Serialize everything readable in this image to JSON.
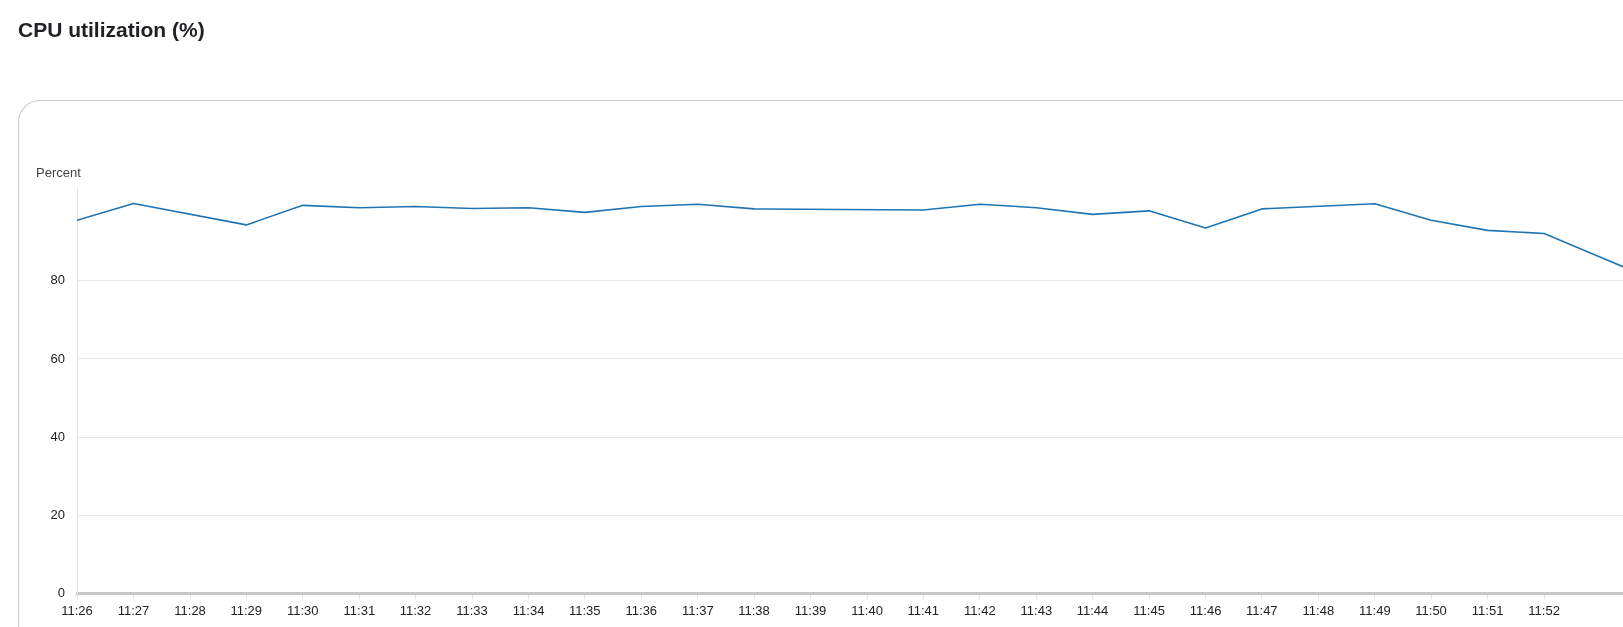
{
  "chart_data": {
    "type": "line",
    "title": "CPU utilization (%)",
    "ylabel": "Percent",
    "x": [
      11.4333,
      11.45,
      11.4833,
      11.5,
      11.5167,
      11.5333,
      11.55,
      11.5667,
      11.5833,
      11.6,
      11.6167,
      11.6333,
      11.6833,
      11.7,
      11.7167,
      11.7333,
      11.75,
      11.7667,
      11.7833,
      11.8167,
      11.8333,
      11.85,
      11.8667,
      11.89
    ],
    "series": [
      {
        "color": "#1f74b4",
        "values": [
          95.5,
          99.8,
          94.3,
          99.3,
          98.7,
          99.0,
          98.5,
          98.7,
          97.5,
          99.0,
          99.6,
          98.4,
          98.1,
          99.6,
          98.7,
          97.0,
          97.9,
          93.5,
          98.4,
          99.7,
          95.5,
          92.9,
          92.1,
          83.6
        ]
      }
    ],
    "xlim": [
      11.4333,
      11.89
    ],
    "ylim": [
      0,
      104
    ],
    "xticks": [
      {
        "value": 11.4333,
        "label": "11:26"
      },
      {
        "value": 11.45,
        "label": "11:27"
      },
      {
        "value": 11.4667,
        "label": "11:28"
      },
      {
        "value": 11.4833,
        "label": "11:29"
      },
      {
        "value": 11.5,
        "label": "11:30"
      },
      {
        "value": 11.5167,
        "label": "11:31"
      },
      {
        "value": 11.5333,
        "label": "11:32"
      },
      {
        "value": 11.55,
        "label": "11:33"
      },
      {
        "value": 11.5667,
        "label": "11:34"
      },
      {
        "value": 11.5833,
        "label": "11:35"
      },
      {
        "value": 11.6,
        "label": "11:36"
      },
      {
        "value": 11.6167,
        "label": "11:37"
      },
      {
        "value": 11.6333,
        "label": "11:38"
      },
      {
        "value": 11.65,
        "label": "11:39"
      },
      {
        "value": 11.6667,
        "label": "11:40"
      },
      {
        "value": 11.6833,
        "label": "11:41"
      },
      {
        "value": 11.7,
        "label": "11:42"
      },
      {
        "value": 11.7167,
        "label": "11:43"
      },
      {
        "value": 11.7333,
        "label": "11:44"
      },
      {
        "value": 11.75,
        "label": "11:45"
      },
      {
        "value": 11.7667,
        "label": "11:46"
      },
      {
        "value": 11.7833,
        "label": "11:47"
      },
      {
        "value": 11.8,
        "label": "11:48"
      },
      {
        "value": 11.8167,
        "label": "11:49"
      },
      {
        "value": 11.8333,
        "label": "11:50"
      },
      {
        "value": 11.85,
        "label": "11:51"
      },
      {
        "value": 11.8667,
        "label": "11:52"
      }
    ],
    "yticks": [
      0,
      20,
      40,
      60,
      80
    ],
    "grid": "y",
    "legend": false,
    "marker": "none",
    "line_style": "solid"
  }
}
